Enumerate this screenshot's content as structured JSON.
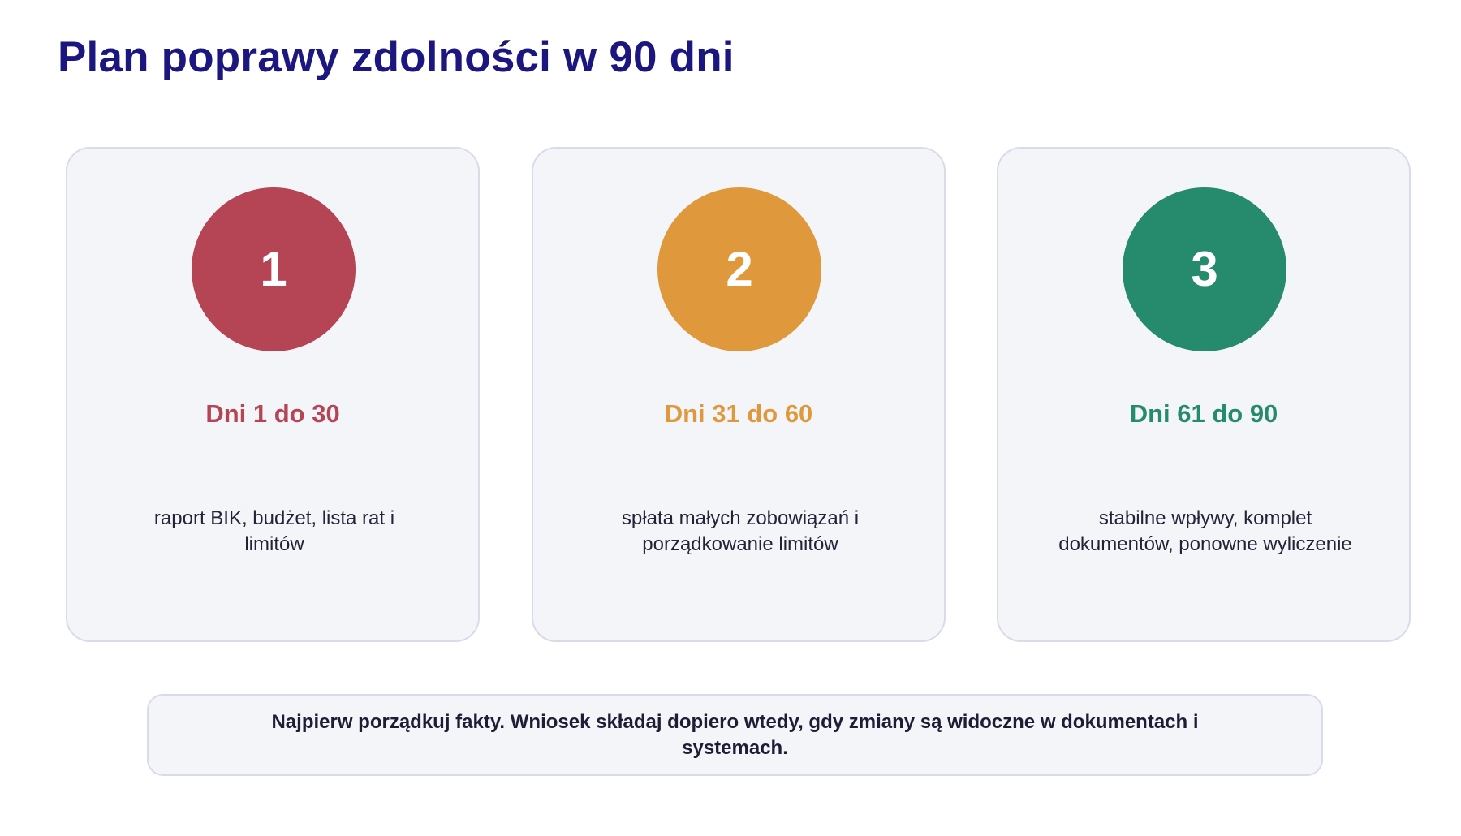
{
  "title": "Plan poprawy zdolności w 90 dni",
  "steps": [
    {
      "number": "1",
      "period": "Dni 1 do 30",
      "description": "raport BIK, budżet, lista rat i limitów",
      "color": "#b54455"
    },
    {
      "number": "2",
      "period": "Dni 31 do 60",
      "description": "spłata małych zobowiązań i porządkowanie limitów",
      "color": "#df993c"
    },
    {
      "number": "3",
      "period": "Dni 61 do 90",
      "description": "stabilne wpływy, komplet dokumentów, ponowne wyliczenie",
      "color": "#268a6c"
    }
  ],
  "note": "Najpierw porządkuj fakty. Wniosek składaj dopiero wtedy, gdy zmiany są widoczne w dokumentach i systemach."
}
